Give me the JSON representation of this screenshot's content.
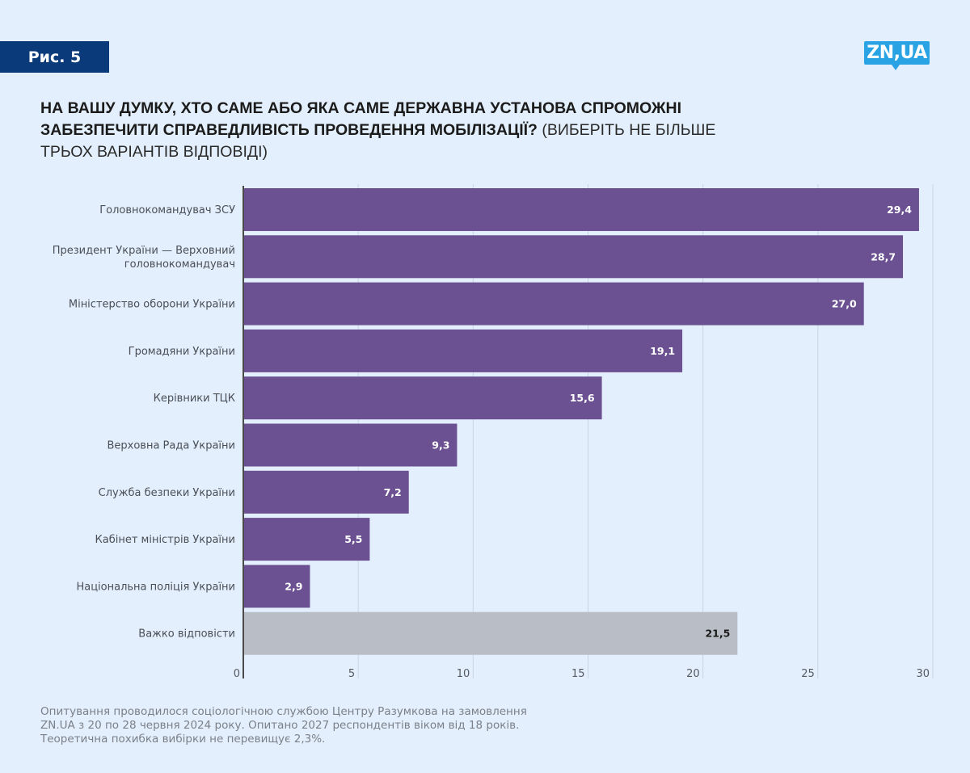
{
  "figure_label": "Рис. 5",
  "logo_text": "ZN,UA",
  "title": {
    "bold_part": "НА ВАШУ ДУМКУ, ХТО САМЕ АБО ЯКА САМЕ ДЕРЖАВНА УСТАНОВА СПРОМОЖНІ ЗАБЕЗПЕЧИТИ СПРАВЕДЛИВІСТЬ ПРОВЕДЕННЯ МОБІЛІЗАЦІЇ?",
    "light_part": "(ВИБЕРІТЬ НЕ БІЛЬШЕ ТРЬОХ ВАРІАНТІВ ВІДПОВІДІ)"
  },
  "colors": {
    "bar_primary": "#6b5192",
    "bar_secondary": "#b9bec6",
    "label_on_primary": "#ffffff",
    "label_on_secondary": "#1a1a1a",
    "badge": "#0b3a7a",
    "logo": "#2aa3e4",
    "background": "#e3effc"
  },
  "chart_data": {
    "type": "bar",
    "orientation": "horizontal",
    "title": "НА ВАШУ ДУМКУ, ХТО САМЕ АБО ЯКА САМЕ ДЕРЖАВНА УСТАНОВА СПРОМОЖНІ ЗАБЕЗПЕЧИТИ СПРАВЕДЛИВІСТЬ ПРОВЕДЕННЯ МОБІЛІЗАЦІЇ? (ВИБЕРІТЬ НЕ БІЛЬШЕ ТРЬОХ ВАРІАНТІВ ВІДПОВІДІ)",
    "categories": [
      [
        "Головнокомандувач ЗСУ"
      ],
      [
        "Президент України — Верховний",
        "головнокомандувач"
      ],
      [
        "Міністерство оборони України"
      ],
      [
        "Громадяни України"
      ],
      [
        "Керівники ТЦК"
      ],
      [
        "Верховна Рада України"
      ],
      [
        "Служба безпеки України"
      ],
      [
        "Кабінет міністрів України"
      ],
      [
        "Національна поліція України"
      ],
      [
        "Важко відповісти"
      ]
    ],
    "values": [
      29.4,
      28.7,
      27.0,
      19.1,
      15.6,
      9.3,
      7.2,
      5.5,
      2.9,
      21.5
    ],
    "value_labels": [
      "29,4",
      "28,7",
      "27,0",
      "19,1",
      "15,6",
      "9,3",
      "7,2",
      "5,5",
      "2,9",
      "21,5"
    ],
    "highlight": [
      "primary",
      "primary",
      "primary",
      "primary",
      "primary",
      "primary",
      "primary",
      "primary",
      "primary",
      "secondary"
    ],
    "xlim": [
      0,
      30
    ],
    "xticks": [
      0,
      5,
      10,
      15,
      20,
      25,
      30
    ],
    "xtick_labels": [
      "0",
      "5",
      "10",
      "15",
      "20",
      "25",
      "30"
    ],
    "xlabel": "",
    "ylabel": "",
    "grid": "vertical",
    "legend": "none",
    "units": "%"
  },
  "footnote": [
    "Опитування проводилося соціологічною службою Центру Разумкова на замовлення",
    "ZN.UA з 20 по 28 червня 2024 року. Опитано 2027 респондентів віком від 18 років.",
    "Теоретична похибка вибірки не перевищує 2,3%."
  ]
}
